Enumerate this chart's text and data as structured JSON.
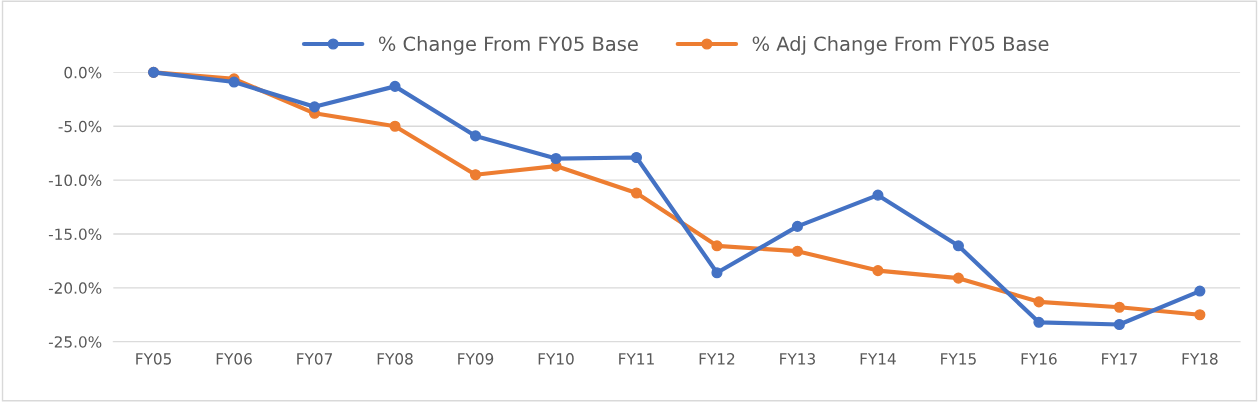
{
  "chart_data": {
    "type": "line",
    "categories": [
      "FY05",
      "FY06",
      "FY07",
      "FY08",
      "FY09",
      "FY10",
      "FY11",
      "FY12",
      "FY13",
      "FY14",
      "FY15",
      "FY16",
      "FY17",
      "FY18"
    ],
    "series": [
      {
        "name": "% Change From FY05 Base",
        "color": "#4472c4",
        "values": [
          0,
          -0.9,
          -3.2,
          -1.3,
          -5.9,
          -8.0,
          -7.9,
          -18.6,
          -14.3,
          -11.4,
          -16.1,
          -23.2,
          -23.4,
          -20.3
        ]
      },
      {
        "name": "% Adj Change From FY05 Base",
        "color": "#ed7d31",
        "values": [
          0,
          -0.6,
          -3.8,
          -5.0,
          -9.5,
          -8.7,
          -11.2,
          -16.1,
          -16.6,
          -18.4,
          -19.1,
          -21.3,
          -21.8,
          -22.5
        ]
      }
    ],
    "ylim": [
      -25,
      0
    ],
    "yticks": [
      {
        "value": 0,
        "label": "0.0%"
      },
      {
        "value": -5,
        "label": "-5.0%"
      },
      {
        "value": -10,
        "label": "-10.0%"
      },
      {
        "value": -15,
        "label": "-15.0%"
      },
      {
        "value": -20,
        "label": "-20.0%"
      },
      {
        "value": -25,
        "label": "-25.0%"
      }
    ],
    "grid": "y",
    "legend": "top",
    "marker": "circle",
    "line_style": "solid"
  }
}
